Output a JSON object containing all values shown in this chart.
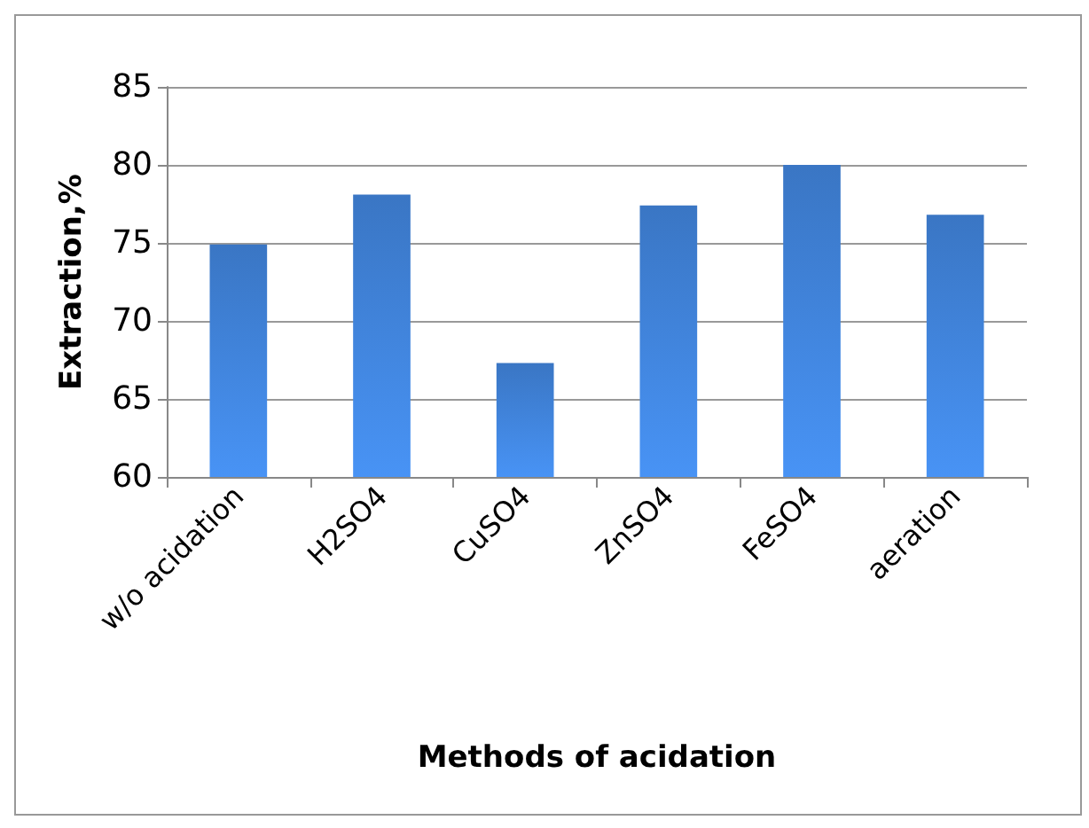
{
  "chart_data": {
    "type": "bar",
    "xlabel": "Methods of acidation",
    "ylabel": "Extraction,%",
    "categories": [
      "w/o acidation",
      "H2SO4",
      "CuSO4",
      "ZnSO4",
      "FeSO4",
      "aeration"
    ],
    "values": [
      74.9,
      78.1,
      67.3,
      77.4,
      80.0,
      76.8
    ],
    "color": "#3a76c4",
    "ylim": [
      60,
      85
    ],
    "yticks": [
      60,
      65,
      70,
      75,
      80,
      85
    ],
    "grid": "y"
  }
}
